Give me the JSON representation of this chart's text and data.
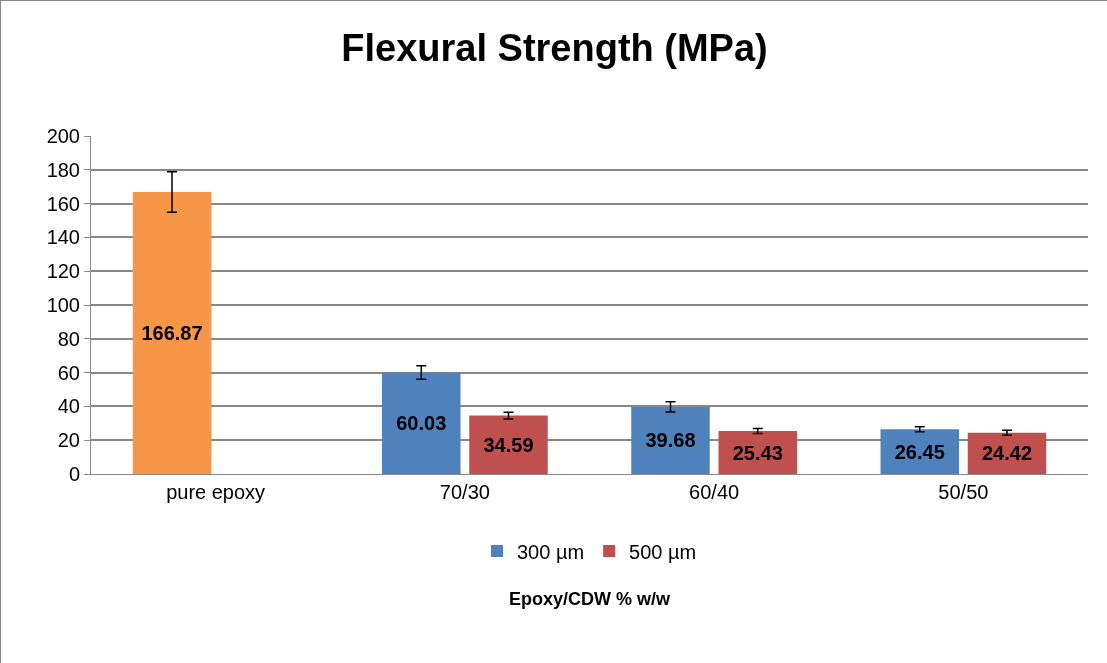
{
  "chart_data": {
    "type": "bar",
    "title": "Flexural Strength (MPa)",
    "xlabel": "Epoxy/CDW % w/w",
    "categories": [
      "pure epoxy",
      "70/30",
      "60/40",
      "50/50"
    ],
    "series": [
      {
        "name": "300 µm",
        "color": "#4f81bd",
        "colors": [
          "#f79646",
          "#4f81bd",
          "#4f81bd",
          "#4f81bd"
        ],
        "values": [
          166.87,
          60.03,
          39.68,
          26.45
        ],
        "errors": [
          12,
          4,
          3,
          1.5
        ]
      },
      {
        "name": "500 µm",
        "color": "#c0504d",
        "values": [
          null,
          34.59,
          25.43,
          24.42
        ],
        "errors": [
          null,
          2,
          1.5,
          1.5
        ]
      }
    ],
    "ylim": [
      0,
      200
    ],
    "yticks": [
      0,
      20,
      40,
      60,
      80,
      100,
      120,
      140,
      160,
      180,
      200
    ],
    "grid": "y",
    "legend": "bottom",
    "data_labels": true
  }
}
